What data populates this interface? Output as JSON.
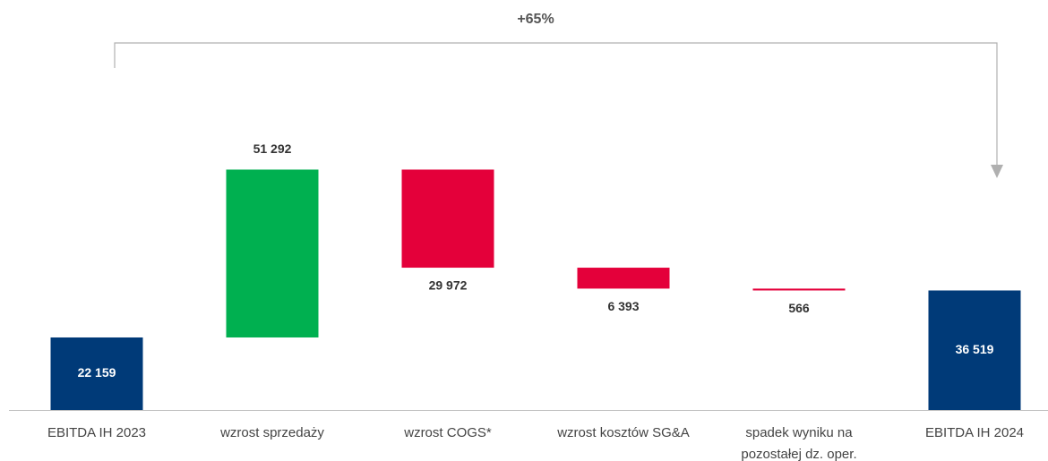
{
  "chart_data": {
    "type": "waterfall",
    "annotation": "+65%",
    "categories": [
      "EBITDA IH 2023",
      "wzrost sprzedaży",
      "wzrost COGS*",
      "wzrost kosztów SG&A",
      "spadek wyniku na pozostałej dz. oper.",
      "EBITDA IH 2024"
    ],
    "values": [
      22159,
      51292,
      -29972,
      -6393,
      -566,
      36519
    ],
    "value_labels": [
      "22 159",
      "51 292",
      "29 972",
      "6 393",
      "566",
      "36 519"
    ],
    "colors": [
      "#003a78",
      "#00b050",
      "#e4003a",
      "#e4003a",
      "#e4003a",
      "#003a78"
    ]
  }
}
